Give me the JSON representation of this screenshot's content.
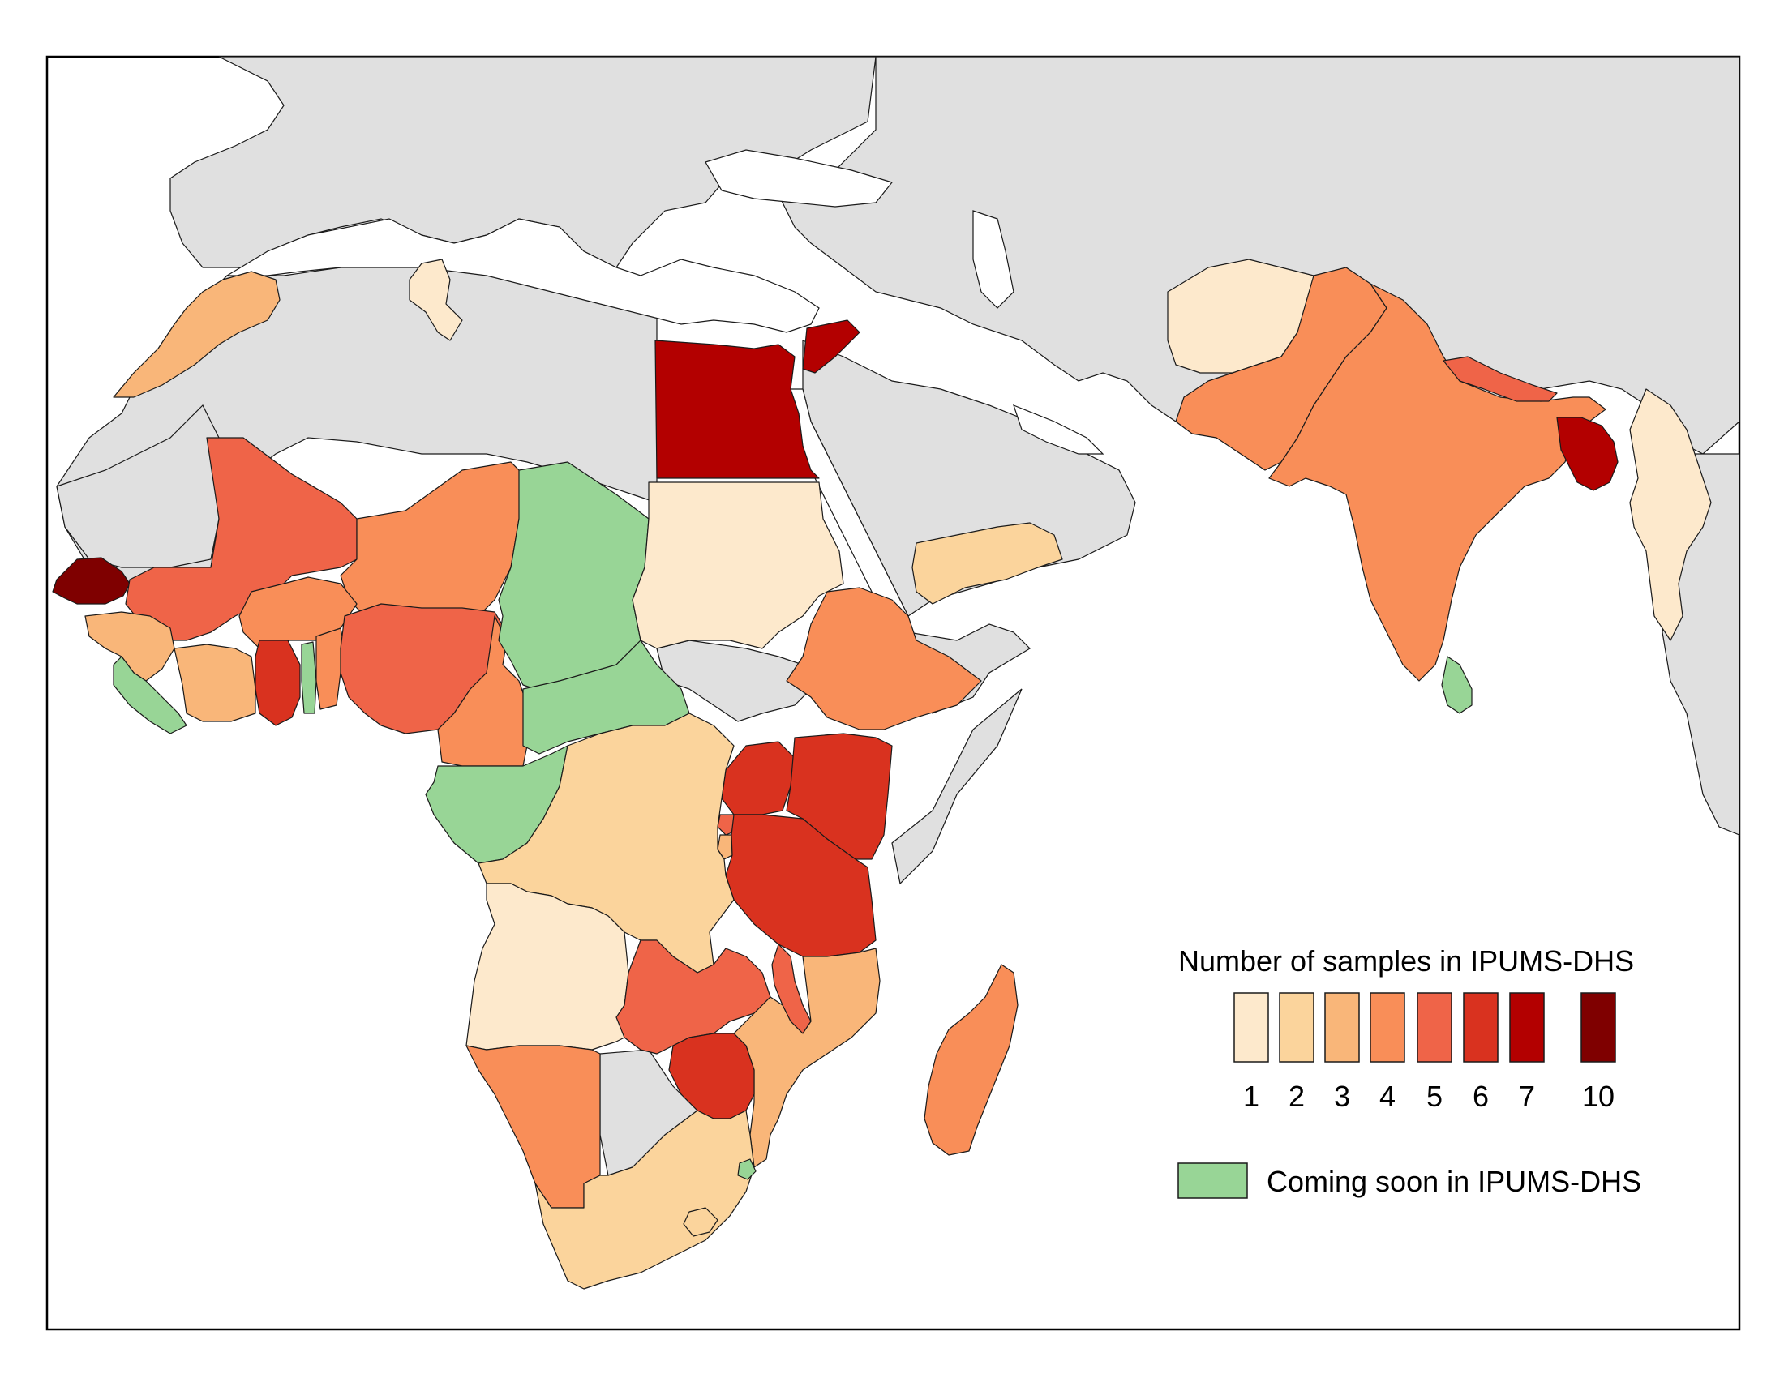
{
  "legend": {
    "title": "Number of samples in IPUMS-DHS",
    "classes": [
      {
        "label": "1",
        "color": "#fde9cc"
      },
      {
        "label": "2",
        "color": "#fbd49c"
      },
      {
        "label": "3",
        "color": "#f9b679"
      },
      {
        "label": "4",
        "color": "#f98e58"
      },
      {
        "label": "5",
        "color": "#ef6448"
      },
      {
        "label": "6",
        "color": "#d9321f"
      },
      {
        "label": "7",
        "color": "#b30000"
      },
      {
        "label": "10",
        "color": "#7f0000"
      }
    ],
    "coming_soon": {
      "label": "Coming soon in IPUMS-DHS",
      "color": "#98d596"
    }
  },
  "colors": {
    "background_land": "#e0e0e0",
    "water": "#ffffff",
    "border": "#1a1a1a"
  },
  "map": {
    "countries": [
      {
        "name": "Morocco",
        "samples": 3
      },
      {
        "name": "Tunisia",
        "samples": 1
      },
      {
        "name": "Egypt",
        "samples": 7
      },
      {
        "name": "Jordan",
        "samples": 7
      },
      {
        "name": "Senegal",
        "samples": 10
      },
      {
        "name": "Mali",
        "samples": 5
      },
      {
        "name": "Niger",
        "samples": 4
      },
      {
        "name": "Burkina Faso",
        "samples": 4
      },
      {
        "name": "Guinea",
        "samples": 3
      },
      {
        "name": "Cote d'Ivoire",
        "samples": 3
      },
      {
        "name": "Ghana",
        "samples": 6
      },
      {
        "name": "Benin",
        "samples": 4
      },
      {
        "name": "Nigeria",
        "samples": 5
      },
      {
        "name": "Cameroon",
        "samples": 4
      },
      {
        "name": "Chad",
        "samples": "soon"
      },
      {
        "name": "Central African Republic",
        "samples": "soon"
      },
      {
        "name": "Liberia",
        "samples": "soon"
      },
      {
        "name": "Togo",
        "samples": "soon"
      },
      {
        "name": "Gabon",
        "samples": "soon"
      },
      {
        "name": "Congo",
        "samples": "soon"
      },
      {
        "name": "Sudan",
        "samples": 1
      },
      {
        "name": "Ethiopia",
        "samples": 4
      },
      {
        "name": "Uganda",
        "samples": 6
      },
      {
        "name": "Kenya",
        "samples": 6
      },
      {
        "name": "Rwanda",
        "samples": 5
      },
      {
        "name": "Burundi",
        "samples": 3
      },
      {
        "name": "Tanzania",
        "samples": 6
      },
      {
        "name": "DR Congo",
        "samples": 2
      },
      {
        "name": "Angola",
        "samples": 1
      },
      {
        "name": "Zambia",
        "samples": 5
      },
      {
        "name": "Malawi",
        "samples": 5
      },
      {
        "name": "Mozambique",
        "samples": 3
      },
      {
        "name": "Zimbabwe",
        "samples": 6
      },
      {
        "name": "Namibia",
        "samples": 4
      },
      {
        "name": "South Africa",
        "samples": 2
      },
      {
        "name": "Lesotho",
        "samples": 2
      },
      {
        "name": "Eswatini",
        "samples": "soon"
      },
      {
        "name": "Madagascar",
        "samples": 4
      },
      {
        "name": "Yemen",
        "samples": 2
      },
      {
        "name": "Afghanistan",
        "samples": 1
      },
      {
        "name": "Pakistan",
        "samples": 4
      },
      {
        "name": "India",
        "samples": 4
      },
      {
        "name": "Nepal",
        "samples": 5
      },
      {
        "name": "Bangladesh",
        "samples": 7
      },
      {
        "name": "Myanmar",
        "samples": 1
      },
      {
        "name": "Sri Lanka",
        "samples": "soon"
      }
    ]
  }
}
